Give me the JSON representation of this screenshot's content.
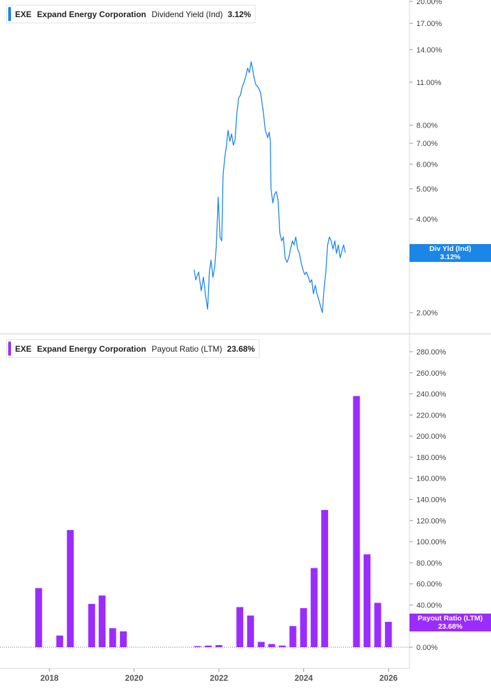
{
  "legend_top": {
    "symbol": "EXE",
    "company": "Expand Energy Corporation",
    "metric": "Dividend Yield (Ind)",
    "value": "3.12%",
    "color": "#1a86e8"
  },
  "legend_bottom": {
    "symbol": "EXE",
    "company": "Expand Energy Corporation",
    "metric": "Payout Ratio (LTM)",
    "value": "23.68%",
    "color": "#9b2cff"
  },
  "tag_top": {
    "label": "Div Yld (Ind)",
    "value": "3.12%"
  },
  "tag_bottom": {
    "label": "Payout Ratio (LTM)",
    "value": "23.68%"
  },
  "chart_data": [
    {
      "type": "line",
      "scale": "log",
      "ylim": [
        1.8,
        20.0
      ],
      "xlim": [
        "2016-11-01",
        "2026-07-01"
      ],
      "yticks": [
        "20.00%",
        "17.00%",
        "14.00%",
        "11.00%",
        "8.00%",
        "7.00%",
        "6.00%",
        "5.00%",
        "4.00%",
        "2.00%"
      ],
      "ytick_values": [
        20,
        17,
        14,
        11,
        8,
        7,
        6,
        5,
        4,
        2
      ],
      "series": [
        {
          "values": [
            [
              "2021-06-01",
              2.75
            ],
            [
              "2021-06-15",
              2.55
            ],
            [
              "2021-07-10",
              2.7
            ],
            [
              "2021-08-01",
              2.35
            ],
            [
              "2021-08-20",
              2.6
            ],
            [
              "2021-09-05",
              2.3
            ],
            [
              "2021-09-25",
              2.05
            ],
            [
              "2021-10-10",
              2.7
            ],
            [
              "2021-10-25",
              2.95
            ],
            [
              "2021-11-10",
              2.6
            ],
            [
              "2021-11-25",
              2.8
            ],
            [
              "2021-12-10",
              3.3
            ],
            [
              "2021-12-25",
              4.7
            ],
            [
              "2022-01-10",
              3.5
            ],
            [
              "2022-01-25",
              3.4
            ],
            [
              "2022-02-05",
              5.5
            ],
            [
              "2022-02-20",
              6.3
            ],
            [
              "2022-03-05",
              6.8
            ],
            [
              "2022-03-20",
              7.7
            ],
            [
              "2022-04-05",
              7.1
            ],
            [
              "2022-04-20",
              7.5
            ],
            [
              "2022-05-05",
              6.9
            ],
            [
              "2022-05-20",
              7.2
            ],
            [
              "2022-06-05",
              8.8
            ],
            [
              "2022-06-20",
              9.8
            ],
            [
              "2022-07-05",
              10.0
            ],
            [
              "2022-07-20",
              10.6
            ],
            [
              "2022-08-05",
              11.0
            ],
            [
              "2022-08-20",
              11.5
            ],
            [
              "2022-09-05",
              12.2
            ],
            [
              "2022-09-20",
              11.8
            ],
            [
              "2022-10-05",
              12.8
            ],
            [
              "2022-10-15",
              12.3
            ],
            [
              "2022-10-30",
              11.4
            ],
            [
              "2022-11-15",
              10.8
            ],
            [
              "2022-12-05",
              10.6
            ],
            [
              "2022-12-25",
              10.2
            ],
            [
              "2023-01-15",
              9.0
            ],
            [
              "2023-02-05",
              7.7
            ],
            [
              "2023-02-25",
              7.3
            ],
            [
              "2023-03-10",
              7.6
            ],
            [
              "2023-03-20",
              7.1
            ],
            [
              "2023-03-25",
              5.0
            ],
            [
              "2023-04-10",
              4.5
            ],
            [
              "2023-04-25",
              4.8
            ],
            [
              "2023-05-10",
              4.9
            ],
            [
              "2023-05-25",
              4.6
            ],
            [
              "2023-06-10",
              3.6
            ],
            [
              "2023-06-25",
              3.4
            ],
            [
              "2023-07-10",
              3.5
            ],
            [
              "2023-07-25",
              3.0
            ],
            [
              "2023-08-10",
              2.9
            ],
            [
              "2023-08-25",
              3.0
            ],
            [
              "2023-09-10",
              3.2
            ],
            [
              "2023-09-25",
              3.4
            ],
            [
              "2023-10-10",
              3.3
            ],
            [
              "2023-10-25",
              3.5
            ],
            [
              "2023-11-10",
              3.2
            ],
            [
              "2023-11-25",
              3.1
            ],
            [
              "2023-12-10",
              2.9
            ],
            [
              "2023-12-25",
              2.75
            ],
            [
              "2024-01-10",
              2.65
            ],
            [
              "2024-01-25",
              2.7
            ],
            [
              "2024-02-10",
              2.6
            ],
            [
              "2024-02-25",
              2.5
            ],
            [
              "2024-03-10",
              2.55
            ],
            [
              "2024-03-25",
              2.3
            ],
            [
              "2024-04-10",
              2.45
            ],
            [
              "2024-04-25",
              2.3
            ],
            [
              "2024-05-10",
              2.2
            ],
            [
              "2024-05-25",
              2.1
            ],
            [
              "2024-06-10",
              2.0
            ],
            [
              "2024-06-25",
              2.4
            ],
            [
              "2024-07-10",
              2.7
            ],
            [
              "2024-07-25",
              3.3
            ],
            [
              "2024-08-10",
              3.5
            ],
            [
              "2024-08-25",
              3.4
            ],
            [
              "2024-09-10",
              3.2
            ],
            [
              "2024-09-25",
              3.4
            ],
            [
              "2024-10-10",
              3.1
            ],
            [
              "2024-10-25",
              3.3
            ],
            [
              "2024-11-10",
              3.0
            ],
            [
              "2024-11-25",
              3.15
            ],
            [
              "2024-12-10",
              3.3
            ],
            [
              "2024-12-25",
              3.12
            ]
          ]
        }
      ]
    },
    {
      "type": "bar",
      "ylim": [
        0,
        280
      ],
      "xlim": [
        "2016-11-01",
        "2026-07-01"
      ],
      "yticks": [
        "280.00%",
        "260.00%",
        "240.00%",
        "220.00%",
        "200.00%",
        "180.00%",
        "160.00%",
        "140.00%",
        "120.00%",
        "100.00%",
        "80.00%",
        "60.00%",
        "40.00%",
        "20.00%",
        "0.00%"
      ],
      "ytick_values": [
        280,
        260,
        240,
        220,
        200,
        180,
        160,
        140,
        120,
        100,
        80,
        60,
        40,
        20,
        0
      ],
      "xticks": [
        "2018",
        "2020",
        "2022",
        "2024",
        "2026"
      ],
      "x": [
        "2017-09-30",
        "2018-03-31",
        "2018-06-30",
        "2018-12-31",
        "2019-03-31",
        "2019-06-30",
        "2019-09-30",
        "2021-06-30",
        "2021-09-30",
        "2021-12-31",
        "2022-06-30",
        "2022-09-30",
        "2022-12-31",
        "2023-03-31",
        "2023-06-30",
        "2023-09-30",
        "2023-12-31",
        "2024-03-31",
        "2024-06-30",
        "2025-03-31",
        "2025-06-30",
        "2025-09-30",
        "2025-12-31"
      ],
      "values": [
        56,
        11,
        111,
        41,
        49,
        18,
        15,
        1,
        1.5,
        2,
        38,
        30,
        5,
        3,
        1.5,
        20,
        37,
        75,
        130,
        238,
        88,
        42,
        24
      ]
    }
  ]
}
